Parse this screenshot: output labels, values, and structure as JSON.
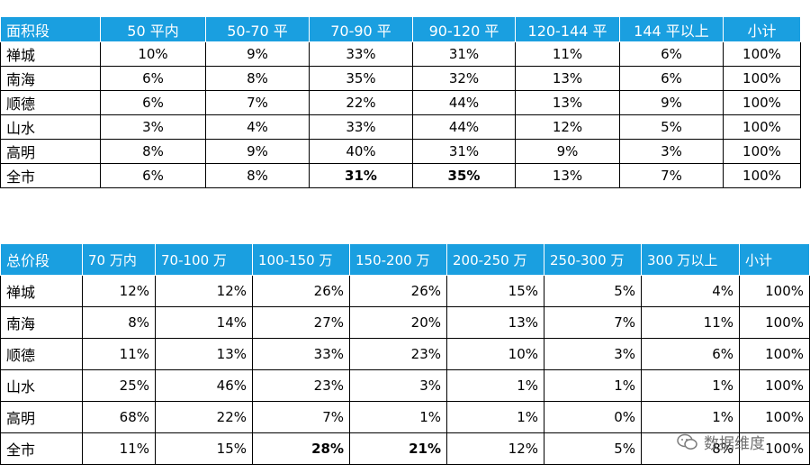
{
  "table1": {
    "headers": [
      "面积段",
      "50 平内",
      "50-70 平",
      "70-90 平",
      "90-120 平",
      "120-144 平",
      "144 平以上",
      "小计"
    ],
    "rows": [
      [
        "禅城",
        "10%",
        "9%",
        "33%",
        "31%",
        "11%",
        "6%",
        "100%"
      ],
      [
        "南海",
        "6%",
        "8%",
        "35%",
        "32%",
        "13%",
        "6%",
        "100%"
      ],
      [
        "顺德",
        "6%",
        "7%",
        "22%",
        "44%",
        "13%",
        "9%",
        "100%"
      ],
      [
        "山水",
        "3%",
        "4%",
        "33%",
        "44%",
        "12%",
        "5%",
        "100%"
      ],
      [
        "高明",
        "8%",
        "9%",
        "40%",
        "31%",
        "9%",
        "3%",
        "100%"
      ],
      [
        "全市",
        "6%",
        "8%",
        "31%",
        "35%",
        "13%",
        "7%",
        "100%"
      ]
    ]
  },
  "table2": {
    "headers": [
      "总价段",
      "70 万内",
      "70-100 万",
      "100-150 万",
      "150-200 万",
      "200-250 万",
      "250-300 万",
      "300 万以上",
      "小计"
    ],
    "rows": [
      [
        "禅城",
        "12%",
        "12%",
        "26%",
        "26%",
        "15%",
        "5%",
        "4%",
        "100%"
      ],
      [
        "南海",
        "8%",
        "14%",
        "27%",
        "20%",
        "13%",
        "7%",
        "11%",
        "100%"
      ],
      [
        "顺德",
        "11%",
        "13%",
        "33%",
        "23%",
        "10%",
        "3%",
        "6%",
        "100%"
      ],
      [
        "山水",
        "25%",
        "46%",
        "23%",
        "3%",
        "1%",
        "1%",
        "1%",
        "100%"
      ],
      [
        "高明",
        "68%",
        "22%",
        "7%",
        "1%",
        "1%",
        "0%",
        "1%",
        "100%"
      ],
      [
        "全市",
        "11%",
        "15%",
        "28%",
        "21%",
        "12%",
        "5%",
        "8%",
        "100%"
      ]
    ]
  },
  "watermark": {
    "text": "数据维度",
    "icon": "wechat-icon"
  },
  "colors": {
    "header_bg": "#1a9fe0",
    "header_text": "#ffffff"
  }
}
